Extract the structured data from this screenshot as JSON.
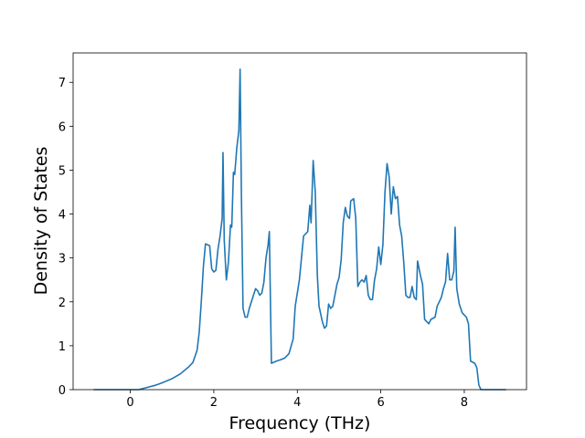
{
  "chart_data": {
    "type": "line",
    "x_label": "Frequency (THz)",
    "y_label": "Density of States",
    "x": [
      -0.88,
      0.2,
      0.4,
      0.6,
      0.8,
      1.0,
      1.2,
      1.4,
      1.5,
      1.6,
      1.65,
      1.7,
      1.75,
      1.8,
      1.85,
      1.9,
      1.95,
      2.0,
      2.05,
      2.1,
      2.15,
      2.2,
      2.22,
      2.25,
      2.3,
      2.35,
      2.4,
      2.43,
      2.47,
      2.5,
      2.55,
      2.6,
      2.63,
      2.66,
      2.7,
      2.75,
      2.8,
      2.85,
      2.9,
      3.0,
      3.05,
      3.1,
      3.15,
      3.2,
      3.25,
      3.3,
      3.33,
      3.38,
      3.5,
      3.6,
      3.7,
      3.8,
      3.9,
      3.95,
      4.05,
      4.15,
      4.25,
      4.3,
      4.33,
      4.38,
      4.43,
      4.48,
      4.52,
      4.6,
      4.65,
      4.7,
      4.75,
      4.8,
      4.85,
      4.95,
      5.0,
      5.05,
      5.1,
      5.15,
      5.2,
      5.25,
      5.28,
      5.35,
      5.4,
      5.45,
      5.5,
      5.55,
      5.6,
      5.65,
      5.7,
      5.75,
      5.8,
      5.85,
      5.9,
      5.95,
      6.0,
      6.05,
      6.1,
      6.15,
      6.2,
      6.25,
      6.3,
      6.35,
      6.4,
      6.45,
      6.5,
      6.55,
      6.6,
      6.65,
      6.7,
      6.75,
      6.8,
      6.85,
      6.88,
      6.95,
      7.0,
      7.05,
      7.1,
      7.15,
      7.2,
      7.3,
      7.35,
      7.45,
      7.5,
      7.55,
      7.6,
      7.65,
      7.7,
      7.75,
      7.78,
      7.82,
      7.88,
      7.95,
      8.05,
      8.1,
      8.15,
      8.25,
      8.3,
      8.35,
      8.4,
      9.0
    ],
    "series": [
      {
        "color": "#1f77b4",
        "values": [
          0,
          0,
          0.05,
          0.1,
          0.17,
          0.25,
          0.36,
          0.52,
          0.62,
          0.9,
          1.3,
          2.0,
          2.8,
          3.32,
          3.3,
          3.28,
          2.75,
          2.68,
          2.72,
          3.2,
          3.5,
          3.9,
          5.4,
          3.4,
          2.5,
          2.9,
          3.75,
          3.7,
          4.95,
          4.9,
          5.5,
          5.9,
          7.3,
          4.5,
          1.85,
          1.65,
          1.65,
          1.85,
          2.0,
          2.3,
          2.25,
          2.15,
          2.2,
          2.45,
          3.0,
          3.3,
          3.6,
          0.6,
          0.65,
          0.68,
          0.72,
          0.82,
          1.15,
          1.9,
          2.5,
          3.5,
          3.6,
          4.2,
          3.8,
          5.22,
          4.5,
          2.6,
          1.9,
          1.55,
          1.4,
          1.45,
          1.95,
          1.85,
          1.9,
          2.4,
          2.55,
          2.95,
          3.8,
          4.15,
          3.95,
          3.9,
          4.3,
          4.35,
          3.9,
          2.35,
          2.45,
          2.5,
          2.45,
          2.6,
          2.15,
          2.05,
          2.05,
          2.5,
          2.75,
          3.25,
          2.85,
          3.3,
          4.5,
          5.15,
          4.85,
          4.0,
          4.62,
          4.35,
          4.4,
          3.75,
          3.5,
          2.9,
          2.15,
          2.1,
          2.1,
          2.35,
          2.1,
          2.05,
          2.93,
          2.6,
          2.4,
          1.6,
          1.55,
          1.5,
          1.6,
          1.65,
          1.9,
          2.1,
          2.3,
          2.45,
          3.1,
          2.5,
          2.5,
          2.7,
          3.7,
          2.3,
          1.95,
          1.75,
          1.65,
          1.5,
          0.65,
          0.6,
          0.5,
          0.1,
          0,
          0
        ]
      }
    ],
    "xlim": [
      -1.37,
      9.49
    ],
    "ylim": [
      0,
      7.67
    ],
    "xticks": [
      0,
      2,
      4,
      6,
      8
    ],
    "yticks": [
      0,
      1,
      2,
      3,
      4,
      5,
      6,
      7
    ]
  }
}
